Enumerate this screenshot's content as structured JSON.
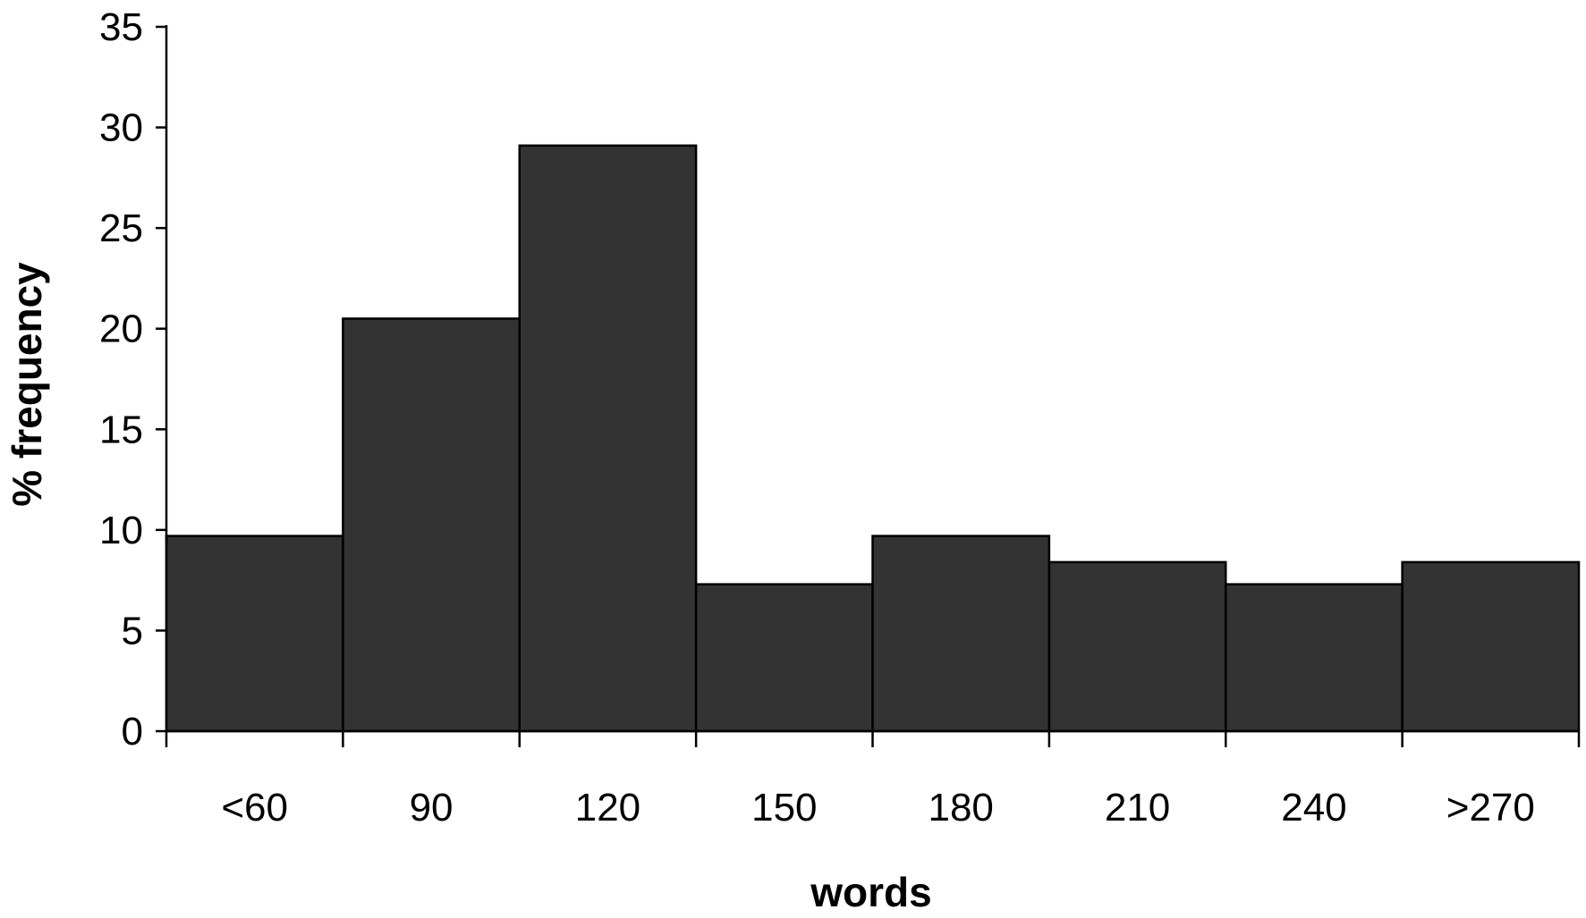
{
  "chart_data": {
    "type": "bar",
    "categories": [
      "<60",
      "90",
      "120",
      "150",
      "180",
      "210",
      "240",
      ">270"
    ],
    "values": [
      9.7,
      20.5,
      29.1,
      7.3,
      9.7,
      8.4,
      7.3,
      8.4
    ],
    "xlabel": "words",
    "ylabel": "% frequency",
    "ylim": [
      0,
      35
    ],
    "yticks": [
      "0",
      "5",
      "10",
      "15",
      "20",
      "25",
      "30",
      "35"
    ],
    "grid": false,
    "legend": "none",
    "bar_color": "#333333"
  }
}
